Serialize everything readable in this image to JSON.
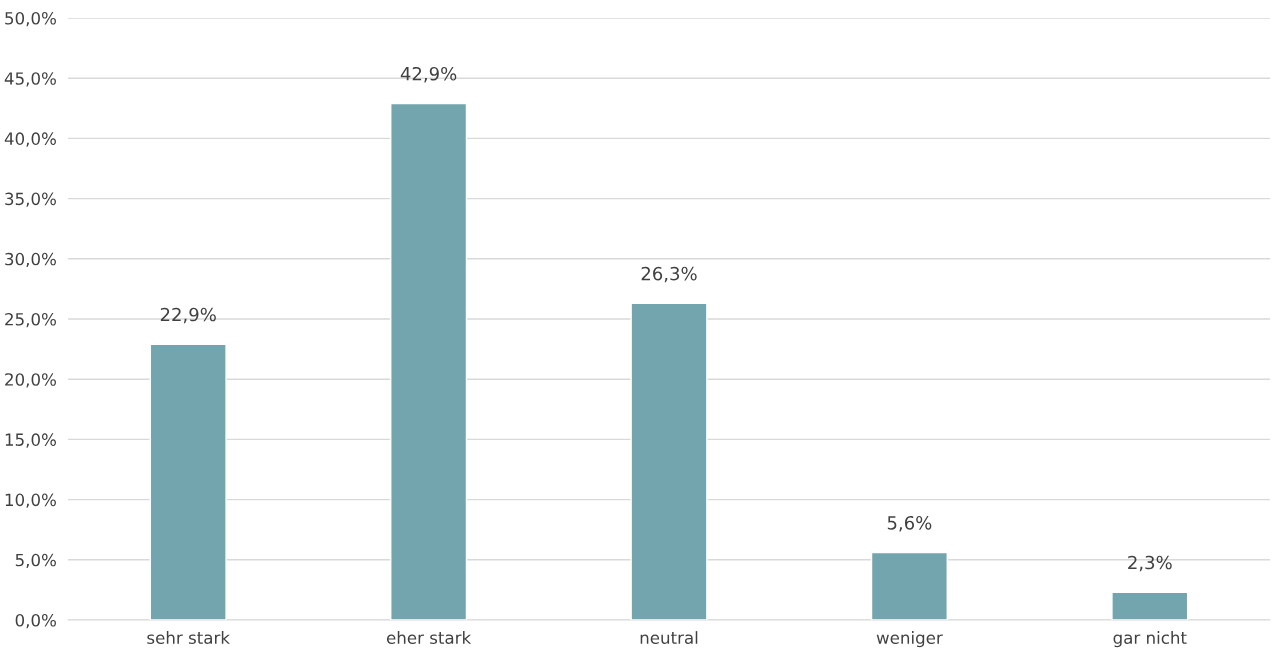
{
  "chart_data": {
    "type": "bar",
    "categories": [
      "sehr stark",
      "eher stark",
      "neutral",
      "weniger",
      "gar nicht"
    ],
    "values": [
      22.9,
      42.9,
      26.3,
      5.6,
      2.3
    ],
    "value_labels": [
      "22,9%",
      "42,9%",
      "26,3%",
      "5,6%",
      "2,3%"
    ],
    "color": "#72a5ae",
    "ylim": [
      0,
      50
    ],
    "yticks": [
      {
        "value": 0,
        "label": "0,0%"
      },
      {
        "value": 5,
        "label": "5,0%"
      },
      {
        "value": 10,
        "label": "10,0%"
      },
      {
        "value": 15,
        "label": "15,0%"
      },
      {
        "value": 20,
        "label": "20,0%"
      },
      {
        "value": 25,
        "label": "25,0%"
      },
      {
        "value": 30,
        "label": "30,0%"
      },
      {
        "value": 35,
        "label": "35,0%"
      },
      {
        "value": 40,
        "label": "40,0%"
      },
      {
        "value": 45,
        "label": "45,0%"
      },
      {
        "value": 50,
        "label": "50,0%"
      }
    ],
    "grid": "y",
    "legend": false
  }
}
